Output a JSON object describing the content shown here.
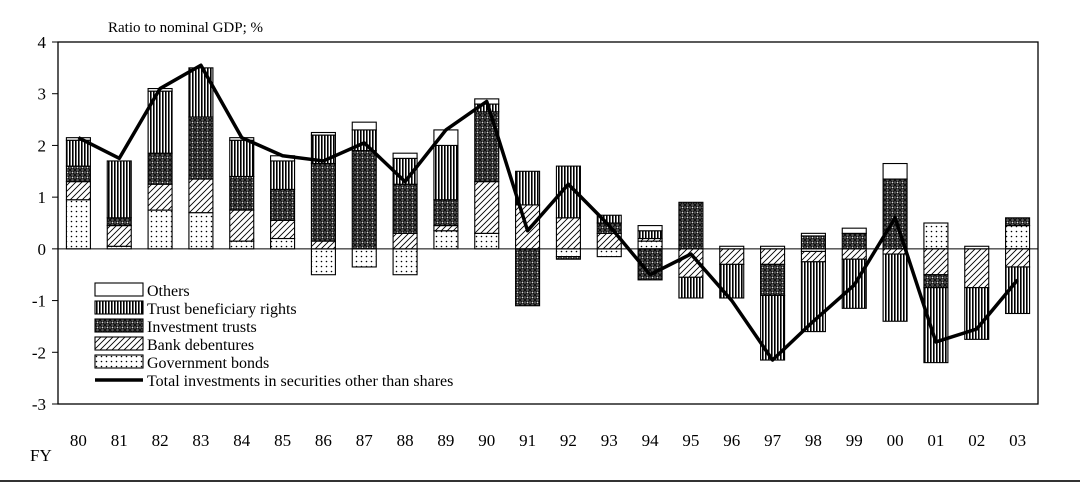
{
  "chart_data": {
    "type": "bar",
    "stacked": true,
    "ylabel": "Ratio to nominal GDP; %",
    "xlabel": "FY",
    "ylim": [
      -3,
      4
    ],
    "yticks": [
      4,
      3,
      2,
      1,
      0,
      -1,
      -2,
      -3
    ],
    "grid": false,
    "legend_position": "bottom-left inside plot",
    "categories": [
      "80",
      "81",
      "82",
      "83",
      "84",
      "85",
      "86",
      "87",
      "88",
      "89",
      "90",
      "91",
      "92",
      "93",
      "94",
      "95",
      "96",
      "97",
      "98",
      "99",
      "00",
      "01",
      "02",
      "03"
    ],
    "series": [
      {
        "name": "Government bonds",
        "pattern": "dots",
        "values": [
          0.95,
          0.05,
          0.75,
          0.7,
          0.15,
          0.2,
          -0.5,
          -0.35,
          -0.5,
          0.35,
          0.3,
          0,
          -0.15,
          -0.15,
          0.15,
          0,
          0,
          0,
          -0.05,
          0,
          0,
          0.5,
          0,
          0.45
        ]
      },
      {
        "name": "Bank debentures",
        "pattern": "diagonal",
        "values": [
          0.35,
          0.4,
          0.5,
          0.65,
          0.6,
          0.35,
          0.15,
          0,
          0.3,
          0.1,
          1.0,
          0.85,
          0.6,
          0.3,
          0.05,
          -0.55,
          -0.3,
          -0.3,
          -0.2,
          -0.2,
          -0.1,
          -0.5,
          -0.75,
          -0.35
        ]
      },
      {
        "name": "Investment trusts",
        "pattern": "crosshatch",
        "values": [
          0.3,
          0.15,
          0.6,
          1.2,
          0.65,
          0.6,
          1.5,
          1.9,
          0.95,
          0.5,
          1.35,
          -1.1,
          -0.05,
          0.2,
          -0.6,
          0.9,
          0,
          -0.6,
          0.25,
          0.3,
          1.35,
          -0.25,
          0,
          0.15
        ]
      },
      {
        "name": "Trust beneficiary rights",
        "pattern": "vertical",
        "values": [
          0.5,
          1.1,
          1.2,
          0.95,
          0.7,
          0.55,
          0.55,
          0.4,
          0.5,
          1.05,
          0.15,
          0.65,
          1.0,
          0.15,
          0.15,
          -0.4,
          -0.65,
          -1.25,
          -1.35,
          -0.95,
          -1.3,
          -1.45,
          -1.0,
          -0.9
        ]
      },
      {
        "name": "Others",
        "pattern": "white",
        "values": [
          0.05,
          0,
          0.05,
          0,
          0.05,
          0.1,
          0.05,
          0.15,
          0.1,
          0.3,
          0.1,
          0,
          0,
          0,
          0.1,
          0,
          0.05,
          0.05,
          0.05,
          0.1,
          0.3,
          0,
          0.05,
          0
        ]
      }
    ],
    "line": {
      "name": "Total investments in securities other than shares",
      "values": [
        2.15,
        1.75,
        3.1,
        3.55,
        2.15,
        1.8,
        1.7,
        2.05,
        1.3,
        2.3,
        2.85,
        0.35,
        1.25,
        0.45,
        -0.5,
        -0.1,
        -1.0,
        -2.15,
        -1.4,
        -0.7,
        0.6,
        -1.8,
        -1.55,
        -0.6
      ]
    },
    "legend": [
      "Others",
      "Trust beneficiary rights",
      "Investment trusts",
      "Bank debentures",
      "Government bonds",
      "Total investments in securities other than shares"
    ]
  }
}
